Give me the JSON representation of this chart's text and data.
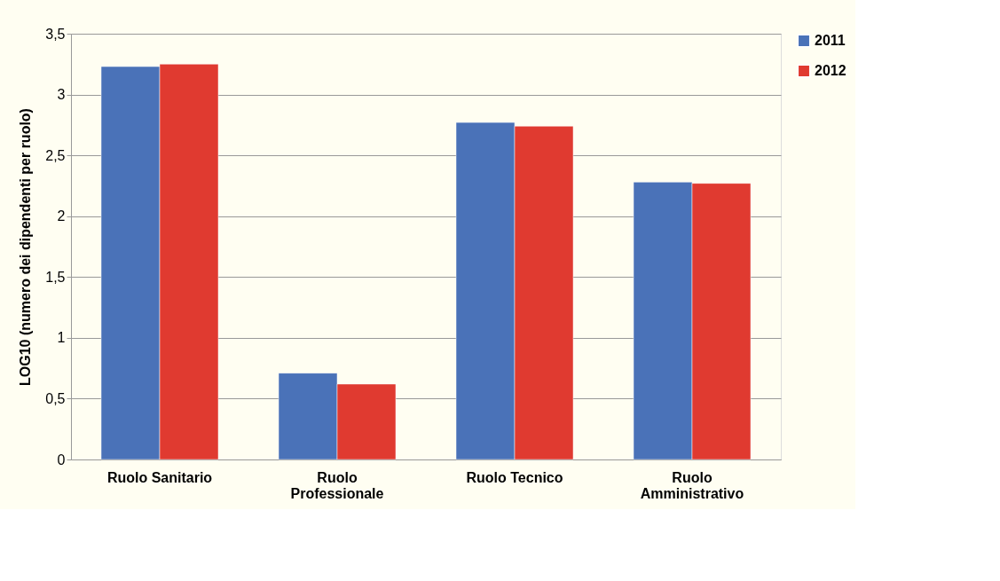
{
  "chart_data": {
    "type": "bar",
    "ylabel": "LOG10 (numero dei dipendenti per ruolo)",
    "categories": [
      "Ruolo Sanitario",
      "Ruolo Professionale",
      "Ruolo Tecnico",
      "Ruolo Amministrativo"
    ],
    "series": [
      {
        "name": "2011",
        "color": "#4a72b8",
        "values": [
          3.23,
          0.71,
          2.77,
          2.28
        ]
      },
      {
        "name": "2012",
        "color": "#e03a30",
        "values": [
          3.25,
          0.62,
          2.74,
          2.27
        ]
      }
    ],
    "ylim": [
      0,
      3.5
    ],
    "yticks": [
      0,
      {
        "value": 0.5,
        "label": "0,5"
      },
      1,
      {
        "value": 1.5,
        "label": "1,5"
      },
      2,
      {
        "value": 2.5,
        "label": "2,5"
      },
      3,
      {
        "value": 3.5,
        "label": "3,5"
      }
    ],
    "grid": "y",
    "legend": "right"
  }
}
